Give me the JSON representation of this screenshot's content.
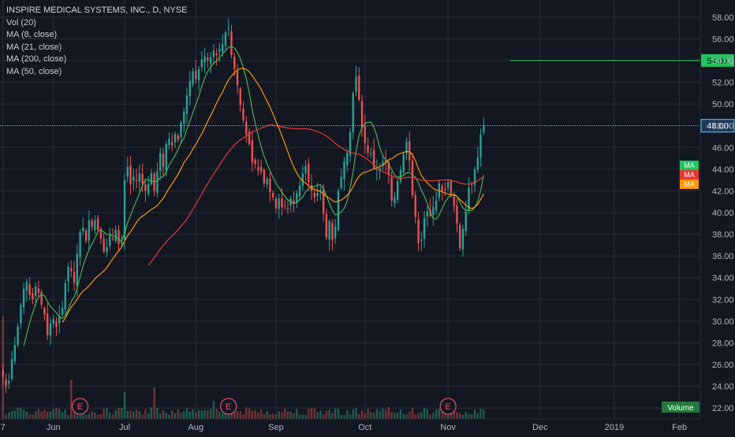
{
  "legend": {
    "title": "INSPIRE MEDICAL SYSTEMS, INC., D, NYSE",
    "items": [
      "Vol (20)",
      "MA (8, close)",
      "MA (21, close)",
      "MA (200, close)",
      "MA (50, close)"
    ]
  },
  "colors": {
    "background": "#131722",
    "grid": "#2a2e39",
    "up": "#26a69a",
    "down": "#ef5350",
    "ma8": "#4caf50",
    "ma21": "#ff9800",
    "ma50": "#e53935",
    "price_line": "#5ac8fa",
    "level_line": "#22c55e"
  },
  "chart_data": {
    "type": "candlestick",
    "y_axis": {
      "range": [
        21,
        59
      ],
      "ticks": [
        22,
        24,
        26,
        28,
        30,
        32,
        34,
        36,
        38,
        40,
        42,
        44,
        46,
        48,
        50,
        52,
        54,
        56,
        58
      ],
      "decimals": 2,
      "side": "right"
    },
    "x_axis": {
      "labels": [
        "7",
        "Jun",
        "Jul",
        "Aug",
        "Sep",
        "Oct",
        "Nov",
        "Dec",
        "2019",
        "Feb"
      ],
      "label_days": [
        0,
        17,
        41,
        65,
        92,
        122,
        150,
        181,
        206,
        228
      ],
      "range": [
        -1,
        235
      ]
    },
    "price_line": {
      "value": 48.0,
      "label": "48.00"
    },
    "level_line": {
      "value": 54.01,
      "label": "54.01",
      "start_day": 171
    },
    "ma_badges": [
      {
        "label": "MA",
        "value": 44.2,
        "color": "#22c55e"
      },
      {
        "label": "MA",
        "value": 43.4,
        "color": "#e53935"
      },
      {
        "label": "MA",
        "value": 42.2,
        "color": "#ff9800"
      }
    ],
    "volume_label": "Volume",
    "earnings_labels": [
      "E",
      "E",
      "E"
    ],
    "earnings_days": [
      26,
      76,
      150
    ],
    "candles_close": [
      24.8,
      24.0,
      24.5,
      26.5,
      27.8,
      29.5,
      31.5,
      33.0,
      33.6,
      32.4,
      32.0,
      33.2,
      32.6,
      31.5,
      30.6,
      28.7,
      29.8,
      30.2,
      29.5,
      30.5,
      31.2,
      33.5,
      35.0,
      34.6,
      33.5,
      36.2,
      38.2,
      38.6,
      37.4,
      39.3,
      38.7,
      39.3,
      38.4,
      37.6,
      36.4,
      36.8,
      37.9,
      37.6,
      38.4,
      37.1,
      37.4,
      43.0,
      44.2,
      42.6,
      43.3,
      42.9,
      43.6,
      42.7,
      42.0,
      42.6,
      43.6,
      42.0,
      43.8,
      45.5,
      44.2,
      46.3,
      46.8,
      46.2,
      47.2,
      46.7,
      48.3,
      49.3,
      50.8,
      52.1,
      53.0,
      52.3,
      53.2,
      54.1,
      54.4,
      54.0,
      54.3,
      54.9,
      54.5,
      55.1,
      55.5,
      56.6,
      57.0,
      54.5,
      53.2,
      51.7,
      49.9,
      48.5,
      47.2,
      46.3,
      44.6,
      44.5,
      43.9,
      43.8,
      42.7,
      43.1,
      41.9,
      41.4,
      40.4,
      41.3,
      40.5,
      40.6,
      40.4,
      41.3,
      40.8,
      41.8,
      42.5,
      43.6,
      44.3,
      42.8,
      42.0,
      41.4,
      41.8,
      42.1,
      39.9,
      37.7,
      39.2,
      37.5,
      38.7,
      42.0,
      43.3,
      44.7,
      45.5,
      47.4,
      51.0,
      52.5,
      50.4,
      47.8,
      46.4,
      45.5,
      45.5,
      44.1,
      44.0,
      44.1,
      44.7,
      44.6,
      43.5,
      41.1,
      41.4,
      42.9,
      43.9,
      45.4,
      46.5,
      44.8,
      41.6,
      39.6,
      37.2,
      37.5,
      39.5,
      40.1,
      39.7,
      40.5,
      41.1,
      42.7,
      42.0,
      42.1,
      42.8,
      41.7,
      40.6,
      39.0,
      36.7,
      38.5,
      40.1,
      42.3,
      42.6,
      44.0,
      45.1,
      47.2,
      48.0
    ]
  }
}
